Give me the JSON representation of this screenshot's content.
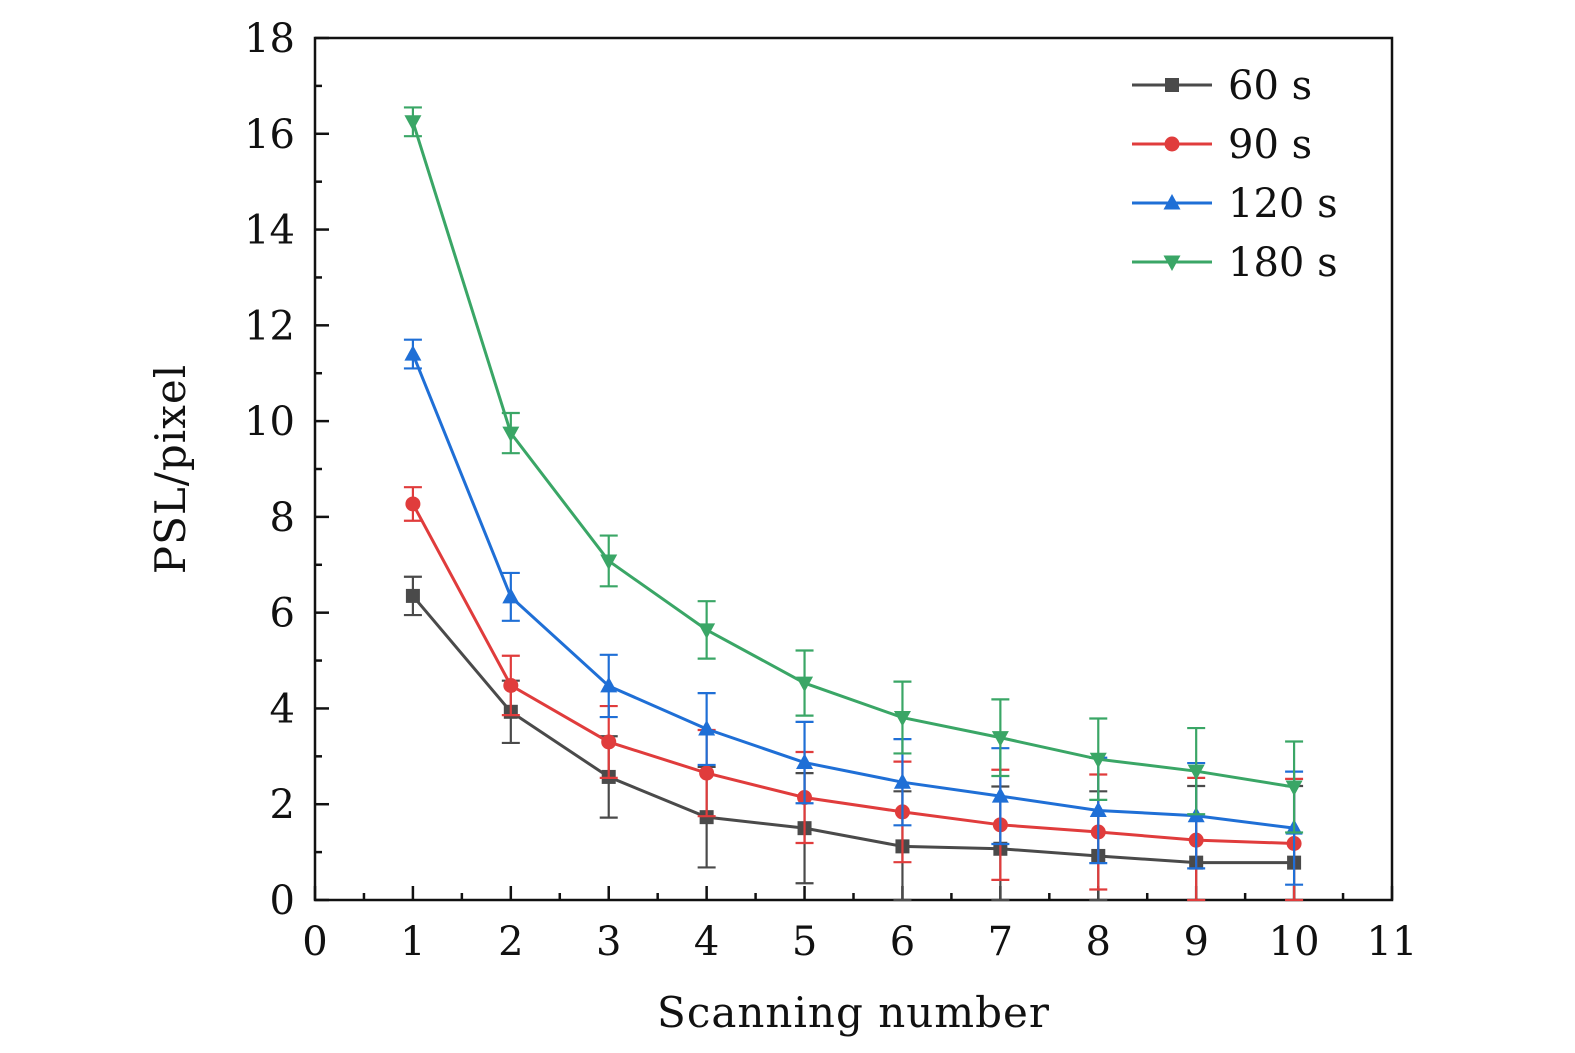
{
  "chart_data": {
    "type": "line",
    "title": "",
    "xlabel": "Scanning number",
    "ylabel": "PSL/pixel",
    "xlim": [
      0,
      11
    ],
    "ylim": [
      0,
      18
    ],
    "xticks": [
      0,
      1,
      2,
      3,
      4,
      5,
      6,
      7,
      8,
      9,
      10,
      11
    ],
    "yticks": [
      0,
      2,
      4,
      6,
      8,
      10,
      12,
      14,
      16,
      18
    ],
    "grid": false,
    "legend_position": "top-right",
    "x": [
      1,
      2,
      3,
      4,
      5,
      6,
      7,
      8,
      9,
      10
    ],
    "series": [
      {
        "name": "60 s",
        "color": "#4a4a4a",
        "marker": "square",
        "values": [
          6.35,
          3.93,
          2.57,
          1.73,
          1.5,
          1.12,
          1.07,
          0.92,
          0.78,
          0.78
        ],
        "errors": [
          0.4,
          0.65,
          0.85,
          1.05,
          1.15,
          1.15,
          1.3,
          1.35,
          1.6,
          1.6
        ]
      },
      {
        "name": "90 s",
        "color": "#e03c3c",
        "marker": "circle",
        "values": [
          8.27,
          4.48,
          3.3,
          2.65,
          2.14,
          1.84,
          1.57,
          1.42,
          1.25,
          1.18
        ],
        "errors": [
          0.35,
          0.62,
          0.75,
          0.9,
          0.95,
          1.05,
          1.15,
          1.2,
          1.3,
          1.35
        ]
      },
      {
        "name": "120 s",
        "color": "#1f6fd6",
        "marker": "triangle-up",
        "values": [
          11.4,
          6.33,
          4.47,
          3.57,
          2.87,
          2.46,
          2.17,
          1.87,
          1.76,
          1.5
        ],
        "errors": [
          0.3,
          0.5,
          0.65,
          0.75,
          0.85,
          0.9,
          1.0,
          1.1,
          1.1,
          1.18
        ]
      },
      {
        "name": "180 s",
        "color": "#3aa666",
        "marker": "triangle-down",
        "values": [
          16.25,
          9.75,
          7.08,
          5.64,
          4.53,
          3.81,
          3.39,
          2.94,
          2.69,
          2.36
        ],
        "errors": [
          0.3,
          0.42,
          0.53,
          0.6,
          0.68,
          0.75,
          0.8,
          0.85,
          0.9,
          0.95
        ]
      }
    ]
  }
}
